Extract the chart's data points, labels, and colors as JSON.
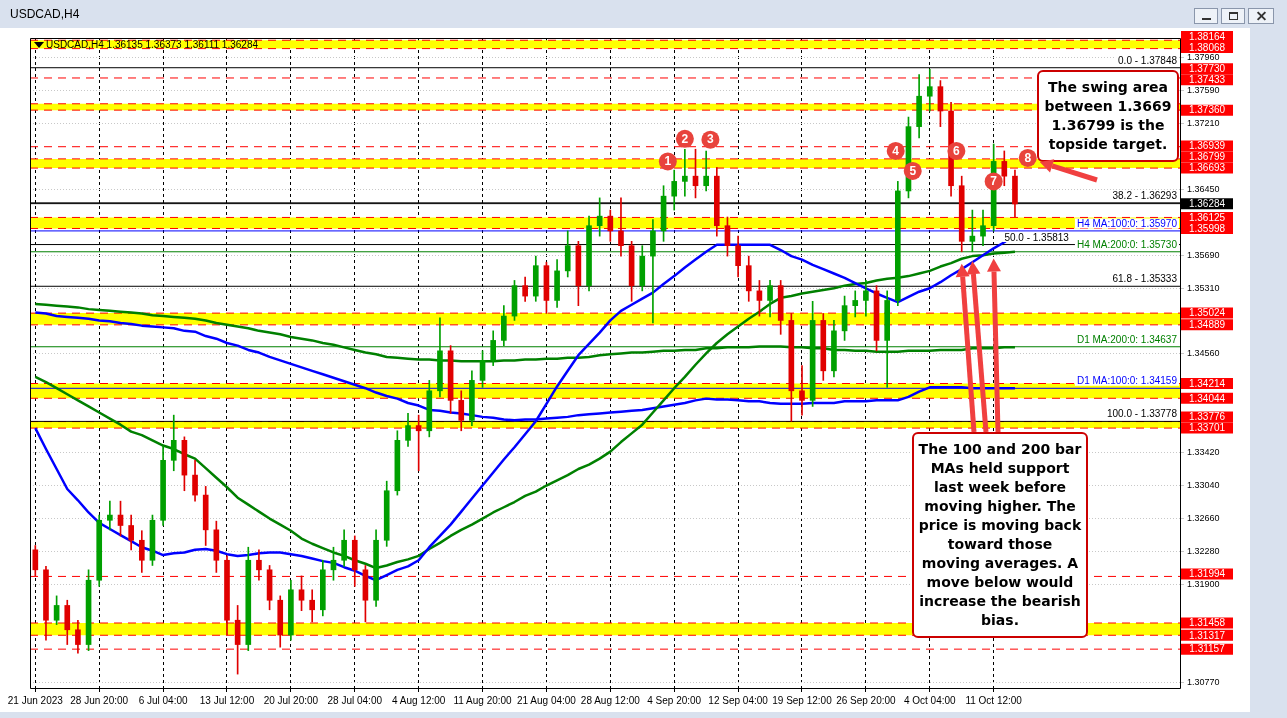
{
  "chart_data": {
    "type": "candlestick",
    "title": "USDCAD,H4 1.36135 1.36373 1.36111 1.36284",
    "subtitle": "USDCAD,H4",
    "categories": [
      "21 Jun 2023",
      null,
      null,
      null,
      null,
      null,
      "28 Jun 20:00",
      null,
      null,
      null,
      null,
      null,
      "6 Jul 04:00",
      null,
      null,
      null,
      null,
      null,
      "13 Jul 12:00",
      null,
      null,
      null,
      null,
      null,
      "20 Jul 20:00",
      null,
      null,
      null,
      null,
      null,
      "28 Jul 04:00",
      null,
      null,
      null,
      null,
      null,
      "4 Aug 12:00",
      null,
      null,
      null,
      null,
      null,
      "11 Aug 20:00",
      null,
      null,
      null,
      null,
      null,
      "21 Aug 04:00",
      null,
      null,
      null,
      null,
      null,
      "28 Aug 12:00",
      null,
      null,
      null,
      null,
      null,
      "4 Sep 20:00",
      null,
      null,
      null,
      null,
      null,
      "12 Sep 04:00",
      null,
      null,
      null,
      null,
      null,
      "19 Sep 12:00",
      null,
      null,
      null,
      null,
      null,
      "26 Sep 20:00",
      null,
      null,
      null,
      null,
      null,
      "4 Oct 04:00",
      null,
      null,
      null,
      null,
      null,
      "11 Oct 12:00",
      null,
      null
    ],
    "ohlc": [
      [
        1.323,
        1.3235,
        1.32,
        1.3207
      ],
      [
        1.3207,
        1.3211,
        1.3126,
        1.3149
      ],
      [
        1.3149,
        1.3177,
        1.3144,
        1.3166
      ],
      [
        1.3166,
        1.3172,
        1.3121,
        1.3138
      ],
      [
        1.3138,
        1.3149,
        1.3111,
        1.3121
      ],
      [
        1.3121,
        1.3207,
        1.3114,
        1.3195
      ],
      [
        1.3195,
        1.327,
        1.3188,
        1.3264
      ],
      [
        1.3264,
        1.3286,
        1.3253,
        1.327
      ],
      [
        1.327,
        1.3286,
        1.3246,
        1.3258
      ],
      [
        1.3258,
        1.327,
        1.323,
        1.3241
      ],
      [
        1.3241,
        1.3252,
        1.3204,
        1.3218
      ],
      [
        1.3218,
        1.327,
        1.3212,
        1.3264
      ],
      [
        1.3264,
        1.3349,
        1.3258,
        1.3333
      ],
      [
        1.3333,
        1.3385,
        1.3321,
        1.3356
      ],
      [
        1.3356,
        1.336,
        1.3298,
        1.3316
      ],
      [
        1.3316,
        1.3333,
        1.3286,
        1.3293
      ],
      [
        1.3293,
        1.3303,
        1.3235,
        1.3253
      ],
      [
        1.3253,
        1.3263,
        1.3204,
        1.3218
      ],
      [
        1.3218,
        1.3223,
        1.3132,
        1.3149
      ],
      [
        1.3149,
        1.3166,
        1.3087,
        1.3121
      ],
      [
        1.3121,
        1.3233,
        1.3114,
        1.3218
      ],
      [
        1.3218,
        1.323,
        1.3195,
        1.3207
      ],
      [
        1.3207,
        1.3212,
        1.3161,
        1.3172
      ],
      [
        1.3172,
        1.3177,
        1.3118,
        1.3132
      ],
      [
        1.3132,
        1.3195,
        1.3126,
        1.3184
      ],
      [
        1.3184,
        1.32,
        1.316,
        1.3172
      ],
      [
        1.3172,
        1.3184,
        1.3147,
        1.3161
      ],
      [
        1.3161,
        1.3218,
        1.3154,
        1.3207
      ],
      [
        1.3207,
        1.3233,
        1.3195,
        1.3218
      ],
      [
        1.3218,
        1.3253,
        1.3211,
        1.3241
      ],
      [
        1.3241,
        1.3246,
        1.3188,
        1.3207
      ],
      [
        1.3207,
        1.3212,
        1.3147,
        1.3172
      ],
      [
        1.3172,
        1.3253,
        1.3165,
        1.3241
      ],
      [
        1.3241,
        1.3309,
        1.3234,
        1.3298
      ],
      [
        1.3298,
        1.3367,
        1.3293,
        1.3356
      ],
      [
        1.3356,
        1.3387,
        1.3349,
        1.3373
      ],
      [
        1.3373,
        1.3385,
        1.3321,
        1.3367
      ],
      [
        1.3367,
        1.3425,
        1.336,
        1.3413
      ],
      [
        1.3413,
        1.3497,
        1.3406,
        1.3459
      ],
      [
        1.3459,
        1.3465,
        1.3387,
        1.3402
      ],
      [
        1.3402,
        1.3413,
        1.3367,
        1.3379
      ],
      [
        1.3379,
        1.3436,
        1.3373,
        1.3425
      ],
      [
        1.3425,
        1.3459,
        1.3417,
        1.3448
      ],
      [
        1.3448,
        1.3482,
        1.3442,
        1.3471
      ],
      [
        1.3471,
        1.3511,
        1.3465,
        1.3499
      ],
      [
        1.3499,
        1.354,
        1.3494,
        1.3534
      ],
      [
        1.3534,
        1.3544,
        1.3516,
        1.3522
      ],
      [
        1.3522,
        1.3568,
        1.3516,
        1.3557
      ],
      [
        1.3557,
        1.3561,
        1.3502,
        1.3517
      ],
      [
        1.3517,
        1.3564,
        1.3509,
        1.3551
      ],
      [
        1.3551,
        1.3597,
        1.3544,
        1.358
      ],
      [
        1.358,
        1.3585,
        1.3511,
        1.3534
      ],
      [
        1.3534,
        1.3614,
        1.3528,
        1.3603
      ],
      [
        1.3603,
        1.3635,
        1.3591,
        1.3614
      ],
      [
        1.3614,
        1.3621,
        1.3585,
        1.3597
      ],
      [
        1.3597,
        1.3635,
        1.3568,
        1.358
      ],
      [
        1.358,
        1.3585,
        1.3516,
        1.3534
      ],
      [
        1.3534,
        1.358,
        1.3528,
        1.3568
      ],
      [
        1.3568,
        1.361,
        1.3491,
        1.3597
      ],
      [
        1.3597,
        1.3649,
        1.3585,
        1.3637
      ],
      [
        1.3637,
        1.3667,
        1.3621,
        1.3654
      ],
      [
        1.3654,
        1.3691,
        1.3637,
        1.366
      ],
      [
        1.366,
        1.3691,
        1.3635,
        1.3649
      ],
      [
        1.3649,
        1.3689,
        1.3643,
        1.366
      ],
      [
        1.366,
        1.367,
        1.3591,
        1.3603
      ],
      [
        1.3603,
        1.3613,
        1.3568,
        1.358
      ],
      [
        1.358,
        1.3591,
        1.3544,
        1.3557
      ],
      [
        1.3557,
        1.3568,
        1.3516,
        1.3528
      ],
      [
        1.3528,
        1.354,
        1.3499,
        1.3517
      ],
      [
        1.3517,
        1.354,
        1.3498,
        1.3534
      ],
      [
        1.3534,
        1.354,
        1.3478,
        1.3494
      ],
      [
        1.3494,
        1.3502,
        1.3378,
        1.3413
      ],
      [
        1.3413,
        1.3442,
        1.3385,
        1.3402
      ],
      [
        1.3402,
        1.3516,
        1.3395,
        1.3494
      ],
      [
        1.3494,
        1.3502,
        1.3425,
        1.3436
      ],
      [
        1.3436,
        1.3494,
        1.3429,
        1.3482
      ],
      [
        1.3482,
        1.3522,
        1.3471,
        1.3511
      ],
      [
        1.3511,
        1.3528,
        1.3498,
        1.3517
      ],
      [
        1.3517,
        1.354,
        1.3499,
        1.3528
      ],
      [
        1.3528,
        1.3534,
        1.3459,
        1.3471
      ],
      [
        1.3471,
        1.3528,
        1.3417,
        1.3517
      ],
      [
        1.3517,
        1.3654,
        1.3511,
        1.3643
      ],
      [
        1.3643,
        1.3728,
        1.3635,
        1.3717
      ],
      [
        1.3717,
        1.3777,
        1.3704,
        1.3752
      ],
      [
        1.3752,
        1.3783,
        1.3735,
        1.3763
      ],
      [
        1.3763,
        1.377,
        1.3717,
        1.3735
      ],
      [
        1.3735,
        1.3745,
        1.3637,
        1.3649
      ],
      [
        1.3649,
        1.366,
        1.3573,
        1.3585
      ],
      [
        1.3585,
        1.3621,
        1.3573,
        1.3591
      ],
      [
        1.3591,
        1.3621,
        1.358,
        1.3603
      ],
      [
        1.3603,
        1.3697,
        1.3597,
        1.3677
      ],
      [
        1.3677,
        1.3689,
        1.3649,
        1.366
      ],
      [
        1.366,
        1.3667,
        1.3613,
        1.3628
      ]
    ],
    "colors": [
      "#e00000",
      "#e00000",
      "#00a000",
      "#e00000",
      "#e00000",
      "#00a000",
      "#00a000",
      "#00a000",
      "#e00000",
      "#e00000",
      "#e00000",
      "#00a000",
      "#00a000",
      "#00a000",
      "#e00000",
      "#e00000",
      "#e00000",
      "#e00000",
      "#e00000",
      "#e00000",
      "#00a000",
      "#e00000",
      "#e00000",
      "#e00000",
      "#00a000",
      "#e00000",
      "#e00000",
      "#00a000",
      "#00a000",
      "#00a000",
      "#e00000",
      "#e00000",
      "#00a000",
      "#00a000",
      "#00a000",
      "#00a000",
      "#e00000",
      "#00a000",
      "#00a000",
      "#e00000",
      "#e00000",
      "#00a000",
      "#00a000",
      "#00a000",
      "#00a000",
      "#00a000",
      "#e00000",
      "#00a000",
      "#e00000",
      "#00a000",
      "#00a000",
      "#e00000",
      "#00a000",
      "#00a000",
      "#e00000",
      "#e00000",
      "#e00000",
      "#00a000",
      "#00a000",
      "#00a000",
      "#00a000",
      "#00a000",
      "#e00000",
      "#00a000",
      "#e00000",
      "#e00000",
      "#e00000",
      "#e00000",
      "#e00000",
      "#00a000",
      "#e00000",
      "#e00000",
      "#e00000",
      "#00a000",
      "#e00000",
      "#00a000",
      "#00a000",
      "#00a000",
      "#00a000",
      "#e00000",
      "#00a000",
      "#00a000",
      "#00a000",
      "#00a000",
      "#00a000",
      "#e00000",
      "#e00000",
      "#e00000",
      "#00a000",
      "#00a000",
      "#00a000",
      "#e00000",
      "#e00000"
    ],
    "series": [
      {
        "type": "line",
        "color": "#0000ff",
        "values": [
          1.337,
          1.3346,
          1.3323,
          1.33,
          1.3287,
          1.3273,
          1.3261,
          1.3254,
          1.3247,
          1.324,
          1.3233,
          1.3229,
          1.3224,
          1.3226,
          1.3227,
          1.323,
          1.3231,
          1.3229,
          1.3225,
          1.3223,
          1.3224,
          1.3226,
          1.3227,
          1.3227,
          1.3225,
          1.3223,
          1.322,
          1.3217,
          1.3215,
          1.321,
          1.3206,
          1.32,
          1.3195,
          1.3201,
          1.3207,
          1.3211,
          1.3218,
          1.3233,
          1.3246,
          1.3259,
          1.3274,
          1.3289,
          1.3304,
          1.3319,
          1.3334,
          1.3348,
          1.3363,
          1.3378,
          1.3398,
          1.3418,
          1.3436,
          1.3454,
          1.3467,
          1.348,
          1.3494,
          1.3505,
          1.3512,
          1.3519,
          1.3526,
          1.3536,
          1.3545,
          1.3555,
          1.3564,
          1.3573,
          1.3581,
          1.3581,
          1.3581,
          1.3581,
          1.3581,
          1.3581,
          1.3575,
          1.3568,
          1.3564,
          1.3558,
          1.3553,
          1.3548,
          1.3543,
          1.3537,
          1.3531,
          1.3525,
          1.352,
          1.3515,
          1.3521,
          1.3527,
          1.3531,
          1.3538,
          1.3546,
          1.3553,
          1.3561,
          1.3569,
          1.3577,
          1.3584,
          1.3594
        ]
      },
      {
        "type": "line",
        "color": "#008000",
        "values": [
          1.3429,
          1.3423,
          1.3416,
          1.3409,
          1.3402,
          1.3395,
          1.3388,
          1.3381,
          1.3374,
          1.3366,
          1.3362,
          1.3356,
          1.335,
          1.3346,
          1.334,
          1.3335,
          1.3324,
          1.3313,
          1.3302,
          1.329,
          1.3282,
          1.3274,
          1.3266,
          1.3259,
          1.3252,
          1.3243,
          1.3237,
          1.3232,
          1.3227,
          1.3223,
          1.3218,
          1.3214,
          1.3209,
          1.3212,
          1.3216,
          1.3219,
          1.3223,
          1.3231,
          1.3238,
          1.3246,
          1.3253,
          1.3259,
          1.3266,
          1.3273,
          1.3279,
          1.3285,
          1.3292,
          1.3297,
          1.3304,
          1.331,
          1.3316,
          1.3323,
          1.3328,
          1.3335,
          1.3343,
          1.3354,
          1.3364,
          1.3374,
          1.3388,
          1.3402,
          1.3416,
          1.3429,
          1.3443,
          1.3456,
          1.3468,
          1.3478,
          1.3487,
          1.3496,
          1.3504,
          1.3513,
          1.352,
          1.3522,
          1.3525,
          1.3527,
          1.3529,
          1.3531,
          1.3534,
          1.3536,
          1.3537,
          1.354,
          1.3542,
          1.3543,
          1.3545,
          1.3548,
          1.3551,
          1.3556,
          1.356,
          1.3565,
          1.3568,
          1.3569,
          1.3571,
          1.3572,
          1.3573
        ]
      },
      {
        "type": "line",
        "color": "#008000",
        "values": [
          1.3513,
          1.3512,
          1.3511,
          1.351,
          1.3509,
          1.3507,
          1.3506,
          1.3505,
          1.3504,
          1.3503,
          1.3502,
          1.35,
          1.3499,
          1.3498,
          1.3497,
          1.3496,
          1.3494,
          1.3491,
          1.3489,
          1.3487,
          1.3485,
          1.3482,
          1.348,
          1.3478,
          1.3475,
          1.3473,
          1.3471,
          1.3468,
          1.3466,
          1.3463,
          1.346,
          1.3457,
          1.3455,
          1.3452,
          1.3451,
          1.345,
          1.3449,
          1.3449,
          1.3448,
          1.3448,
          1.3447,
          1.3447,
          1.3447,
          1.3447,
          1.3448,
          1.3448,
          1.3449,
          1.3449,
          1.345,
          1.345,
          1.3451,
          1.3451,
          1.3452,
          1.3454,
          1.3455,
          1.3456,
          1.3457,
          1.3457,
          1.3458,
          1.3459,
          1.3459,
          1.346,
          1.346,
          1.3462,
          1.3462,
          1.3463,
          1.3463,
          1.3463,
          1.3464,
          1.3464,
          1.3464,
          1.3463,
          1.3463,
          1.3462,
          1.3462,
          1.346,
          1.346,
          1.3459,
          1.3459,
          1.3458,
          1.3458,
          1.3458,
          1.3459,
          1.3459,
          1.3459,
          1.346,
          1.346,
          1.346,
          1.3462,
          1.3462,
          1.3462,
          1.3463,
          1.3463
        ]
      },
      {
        "type": "line",
        "color": "#0000ff",
        "values": [
          1.3503,
          1.3502,
          1.3499,
          1.3498,
          1.3497,
          1.3496,
          1.3494,
          1.3493,
          1.3491,
          1.349,
          1.3488,
          1.3487,
          1.3486,
          1.3485,
          1.3482,
          1.3481,
          1.3476,
          1.3473,
          1.3468,
          1.3465,
          1.346,
          1.3457,
          1.3452,
          1.3448,
          1.3444,
          1.344,
          1.3436,
          1.3432,
          1.3428,
          1.3424,
          1.342,
          1.3416,
          1.3411,
          1.3407,
          1.3404,
          1.3399,
          1.3396,
          1.3391,
          1.339,
          1.3388,
          1.3387,
          1.3385,
          1.3383,
          1.3382,
          1.338,
          1.3379,
          1.338,
          1.338,
          1.3381,
          1.3382,
          1.3383,
          1.3385,
          1.3386,
          1.3387,
          1.3388,
          1.3389,
          1.339,
          1.3391,
          1.3393,
          1.3395,
          1.3397,
          1.3399,
          1.3402,
          1.3404,
          1.3403,
          1.3403,
          1.3402,
          1.3401,
          1.3401,
          1.3399,
          1.3398,
          1.3398,
          1.3398,
          1.3399,
          1.3399,
          1.3399,
          1.3401,
          1.3401,
          1.3401,
          1.3402,
          1.3402,
          1.3402,
          1.3406,
          1.3412,
          1.3417,
          1.3417,
          1.3417,
          1.3417,
          1.3416,
          1.3416,
          1.3416,
          1.3416,
          1.3416
        ]
      }
    ],
    "ylim": [
      1.3071,
      1.3819
    ],
    "yticks": [
      {
        "value": 1.3796,
        "label": "1.37960"
      },
      {
        "value": 1.3759,
        "label": "1.37590"
      },
      {
        "value": 1.3721,
        "label": "1.37210"
      },
      {
        "value": 1.3645,
        "label": "1.36450"
      },
      {
        "value": 1.3569,
        "label": "1.35690"
      },
      {
        "value": 1.3531,
        "label": "1.35310"
      },
      {
        "value": 1.3456,
        "label": "1.34560"
      },
      {
        "value": 1.3342,
        "label": "1.33420"
      },
      {
        "value": 1.3304,
        "label": "1.33040"
      },
      {
        "value": 1.3266,
        "label": "1.32660"
      },
      {
        "value": 1.3228,
        "label": "1.32280"
      },
      {
        "value": 1.319,
        "label": "1.31900"
      },
      {
        "value": 1.3077,
        "label": "1.30770"
      }
    ],
    "grid": true,
    "bands": [
      {
        "axis": "y",
        "from": 1.38068,
        "to": 1.38164,
        "color": "#ffff00"
      },
      {
        "axis": "y",
        "from": 1.3736,
        "to": 1.37433,
        "color": "#ffff00"
      },
      {
        "axis": "y",
        "from": 1.36693,
        "to": 1.36799,
        "color": "#ffff00"
      },
      {
        "axis": "y",
        "from": 1.35998,
        "to": 1.36125,
        "color": "#ffff00"
      },
      {
        "axis": "y",
        "from": 1.34889,
        "to": 1.35024,
        "color": "#ffff00"
      },
      {
        "axis": "y",
        "from": 1.34044,
        "to": 1.34214,
        "color": "#ffff00"
      },
      {
        "axis": "y",
        "from": 1.33701,
        "to": 1.33776,
        "color": "#ffff00"
      },
      {
        "axis": "y",
        "from": 1.31317,
        "to": 1.31458,
        "color": "#ffff00"
      }
    ],
    "ref_lines": [
      {
        "axis": "y",
        "value": 1.38164,
        "label": "1.38164",
        "color": "#ff0000",
        "line_style": "dashed"
      },
      {
        "axis": "y",
        "value": 1.38068,
        "label": "1.38068",
        "color": "#ff0000",
        "line_style": "dashed"
      },
      {
        "axis": "y",
        "value": 1.3773,
        "label": "1.37730",
        "color": "#ff0000",
        "line_style": "dashed"
      },
      {
        "axis": "y",
        "value": 1.37433,
        "label": "1.37433",
        "color": "#ff0000",
        "line_style": "dashed"
      },
      {
        "axis": "y",
        "value": 1.3736,
        "label": "1.37360",
        "color": "#ff0000",
        "line_style": "dashed"
      },
      {
        "axis": "y",
        "value": 1.36939,
        "label": "1.36939",
        "color": "#ff0000",
        "line_style": "dashed"
      },
      {
        "axis": "y",
        "value": 1.36799,
        "label": "1.36799",
        "color": "#ff0000",
        "line_style": "dashed"
      },
      {
        "axis": "y",
        "value": 1.36693,
        "label": "1.36693",
        "color": "#ff0000",
        "line_style": "dashed"
      },
      {
        "axis": "y",
        "value": 1.36125,
        "label": "1.36125",
        "color": "#ff0000",
        "line_style": "dashed"
      },
      {
        "axis": "y",
        "value": 1.35998,
        "label": "1.35998",
        "color": "#ff0000",
        "line_style": "dashed"
      },
      {
        "axis": "y",
        "value": 1.35024,
        "label": "1.35024",
        "color": "#ff0000",
        "line_style": "dashed"
      },
      {
        "axis": "y",
        "value": 1.34889,
        "label": "1.34889",
        "color": "#ff0000",
        "line_style": "dashed"
      },
      {
        "axis": "y",
        "value": 1.34214,
        "label": "1.34214",
        "color": "#ff0000",
        "line_style": "dashed"
      },
      {
        "axis": "y",
        "value": 1.34044,
        "label": "1.34044",
        "color": "#ff0000",
        "line_style": "dashed"
      },
      {
        "axis": "y",
        "value": 1.33776,
        "label": "1.33776",
        "color": "#ff0000",
        "line_style": "dashed"
      },
      {
        "axis": "y",
        "value": 1.33701,
        "label": "1.33701",
        "color": "#ff0000",
        "line_style": "dashed"
      },
      {
        "axis": "y",
        "value": 1.31994,
        "label": "1.31994",
        "color": "#ff0000",
        "line_style": "dashed"
      },
      {
        "axis": "y",
        "value": 1.31458,
        "label": "1.31458",
        "color": "#ff0000",
        "line_style": "dashed"
      },
      {
        "axis": "y",
        "value": 1.31317,
        "label": "1.31317",
        "color": "#ff0000",
        "line_style": "dashed"
      },
      {
        "axis": "y",
        "value": 1.31157,
        "label": "1.31157",
        "color": "#ff0000",
        "line_style": "dashed"
      },
      {
        "axis": "y",
        "value": 1.36284,
        "label": "1.36284",
        "color": "#000000"
      },
      {
        "axis": "y",
        "value": 1.37848,
        "color": "#000000",
        "line_style": "solid"
      },
      {
        "axis": "y",
        "value": 1.36293,
        "color": "#000000",
        "line_style": "solid"
      },
      {
        "axis": "y",
        "value": 1.35813,
        "color": "#000000",
        "line_style": "solid"
      },
      {
        "axis": "y",
        "value": 1.35333,
        "color": "#000000",
        "line_style": "solid"
      },
      {
        "axis": "y",
        "value": 1.33778,
        "color": "#000000",
        "line_style": "solid"
      },
      {
        "axis": "y",
        "value": 1.3597,
        "label": "H4 MA:100:0: 1.35970",
        "color": "#0000ff",
        "line_style": "solid"
      },
      {
        "axis": "y",
        "value": 1.3573,
        "label": "H4 MA:200:0: 1.35730",
        "color": "#008000",
        "line_style": "solid"
      },
      {
        "axis": "y",
        "value": 1.34637,
        "label": "D1 MA:200:0: 1.34637",
        "color": "#008000",
        "line_style": "solid"
      },
      {
        "axis": "y",
        "value": 1.34159,
        "label": "D1 MA:100:0: 1.34159",
        "color": "#0000ff",
        "line_style": "solid"
      }
    ],
    "annotations": [
      {
        "text": "1",
        "y": 1.3677
      },
      {
        "text": "2",
        "y": 1.3703
      },
      {
        "text": "3",
        "y": 1.3702
      },
      {
        "text": "4",
        "y": 1.3689
      },
      {
        "text": "5",
        "y": 1.3666
      },
      {
        "text": "6",
        "y": 1.3689
      },
      {
        "text": "7",
        "y": 1.3654
      },
      {
        "text": "8",
        "y": 1.3681
      },
      {
        "text": "0.0 - 1.37848",
        "y": 1.37848
      },
      {
        "text": "38.2 - 1.36293",
        "y": 1.36293
      },
      {
        "text": "50.0 - 1.35813",
        "y": 1.35813
      },
      {
        "text": "61.8 - 1.35333",
        "y": 1.35333
      },
      {
        "text": "100.0 - 1.33778",
        "y": 1.33778
      },
      "The swing area between 1.3669 1.36799 is the topside target.",
      "The 100 and 200 bar MAs held support last week before moving higher. The price is moving back toward those moving averages.  A move below would increase the bearish bias."
    ]
  }
}
